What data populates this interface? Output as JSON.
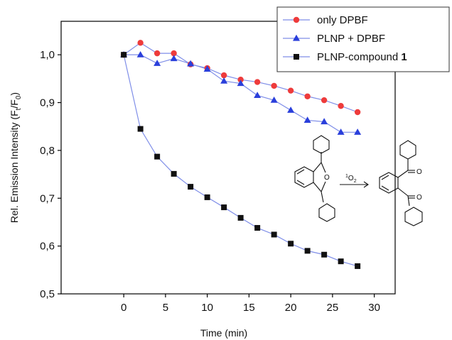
{
  "chart_data": {
    "type": "line",
    "title": "",
    "xlabel": "Time (min)",
    "ylabel": {
      "prefix": "Rel. Emission Intensity (F",
      "sub1": "t",
      "mid": "/F",
      "sub2": "0",
      "suffix": ")"
    },
    "xlim": [
      -7.5,
      32.5
    ],
    "ylim": [
      0.5,
      1.07
    ],
    "xticks": [
      0,
      5,
      10,
      15,
      20,
      25,
      30
    ],
    "xtick_labels": [
      "0",
      "5",
      "10",
      "15",
      "20",
      "25",
      "30"
    ],
    "yticks": [
      0.5,
      0.6,
      0.7,
      0.8,
      0.9,
      1.0
    ],
    "ytick_labels": [
      "0,5",
      "0,6",
      "0,7",
      "0,8",
      "0,9",
      "1,0"
    ],
    "grid": false,
    "legend_position": "top-right",
    "x": [
      0,
      2,
      4,
      6,
      8,
      10,
      12,
      14,
      16,
      18,
      20,
      22,
      24,
      26,
      28
    ],
    "series": [
      {
        "name": "only DPBF",
        "marker": "circle",
        "color": "#ee3b3b",
        "values": [
          1.0,
          1.025,
          1.003,
          1.003,
          0.98,
          0.972,
          0.957,
          0.948,
          0.943,
          0.935,
          0.925,
          0.913,
          0.905,
          0.893,
          0.88
        ]
      },
      {
        "name": "PLNP + DPBF",
        "marker": "triangle",
        "color": "#2a3fdb",
        "values": [
          1.0,
          1.0,
          0.982,
          0.992,
          0.981,
          0.97,
          0.945,
          0.94,
          0.915,
          0.905,
          0.884,
          0.863,
          0.86,
          0.838,
          0.838
        ]
      },
      {
        "name": "PLNP-compound",
        "name_suffix": "1",
        "marker": "square",
        "color": "#111111",
        "values": [
          1.0,
          0.845,
          0.787,
          0.751,
          0.724,
          0.702,
          0.681,
          0.659,
          0.638,
          0.624,
          0.605,
          0.59,
          0.582,
          0.568,
          0.558
        ]
      }
    ],
    "line_color": "#7f8ee8",
    "reaction_label": {
      "sup": "1",
      "base": "O",
      "sub": "2"
    },
    "scheme_atom": "O"
  }
}
